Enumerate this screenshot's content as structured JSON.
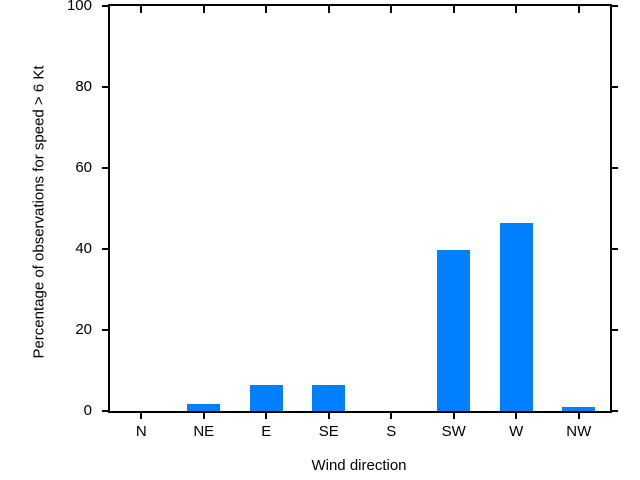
{
  "chart_data": {
    "type": "bar",
    "categories": [
      "N",
      "NE",
      "E",
      "SE",
      "S",
      "SW",
      "W",
      "NW"
    ],
    "values": [
      0,
      1.7,
      6.5,
      6.4,
      0,
      39.8,
      46.5,
      1.1
    ],
    "title": "",
    "xlabel": "Wind direction",
    "ylabel": "Percentage of observations for speed > 6 Kt",
    "ylim": [
      0,
      100
    ],
    "yticks": [
      0,
      20,
      40,
      60,
      80,
      100
    ],
    "bar_color": "#0080ff",
    "axis_color": "#000000",
    "background_color": "#ffffff",
    "grid": false,
    "legend_position": "none"
  }
}
